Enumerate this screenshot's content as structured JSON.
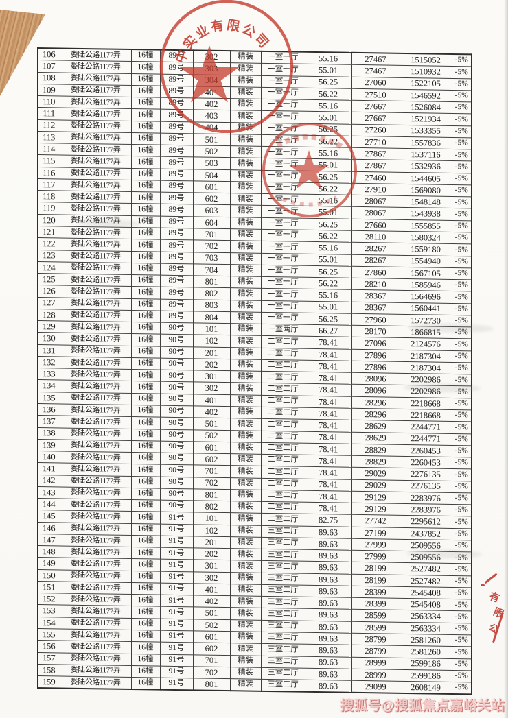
{
  "watermark": {
    "text": "搜狐号@搜狐焦点嘉峪关站"
  },
  "stamps": {
    "company_seal": {
      "arc_text": "中实业有限公司",
      "color": "#c43a2c"
    },
    "inner_seal": {
      "color": "#c43a2c"
    },
    "edge_fragment": {
      "chars": [
        "有",
        "限",
        "公"
      ],
      "color": "#bf392e"
    }
  },
  "table": {
    "columns": [
      "no",
      "address",
      "building",
      "unit",
      "room",
      "decoration",
      "layout",
      "area",
      "unit_price",
      "total_price",
      "discount"
    ],
    "rows": [
      [
        "106",
        "娄陆公路1177弄",
        "16幢",
        "89号",
        "302",
        "精装",
        "一室一厅",
        "55.16",
        "27467",
        "1515052",
        "-5%"
      ],
      [
        "107",
        "娄陆公路1177弄",
        "16幢",
        "89号",
        "303",
        "精装",
        "一室一厅",
        "55.01",
        "27467",
        "1510932",
        "-5%"
      ],
      [
        "108",
        "娄陆公路1177弄",
        "16幢",
        "89号",
        "304",
        "精装",
        "一室一厅",
        "56.25",
        "27060",
        "1522105",
        "-5%"
      ],
      [
        "109",
        "娄陆公路1177弄",
        "16幢",
        "89号",
        "401",
        "精装",
        "一室一厅",
        "56.22",
        "27510",
        "1546592",
        "-5%"
      ],
      [
        "110",
        "娄陆公路1177弄",
        "16幢",
        "89号",
        "402",
        "精装",
        "一室一厅",
        "55.16",
        "27667",
        "1526084",
        "-5%"
      ],
      [
        "111",
        "娄陆公路1177弄",
        "16幢",
        "89号",
        "403",
        "精装",
        "一室一厅",
        "55.01",
        "27667",
        "1521934",
        "-5%"
      ],
      [
        "112",
        "娄陆公路1177弄",
        "16幢",
        "89号",
        "404",
        "精装",
        "一室一厅",
        "56.25",
        "27260",
        "1533355",
        "-5%"
      ],
      [
        "113",
        "娄陆公路1177弄",
        "16幢",
        "89号",
        "501",
        "精装",
        "一室一厅",
        "56.22",
        "27710",
        "1557836",
        "-5%"
      ],
      [
        "114",
        "娄陆公路1177弄",
        "16幢",
        "89号",
        "502",
        "精装",
        "一室一厅",
        "55.16",
        "27867",
        "1537116",
        "-5%"
      ],
      [
        "115",
        "娄陆公路1177弄",
        "16幢",
        "89号",
        "503",
        "精装",
        "一室一厅",
        "55.01",
        "27867",
        "1532936",
        "-5%"
      ],
      [
        "116",
        "娄陆公路1177弄",
        "16幢",
        "89号",
        "504",
        "精装",
        "一室一厅",
        "56.25",
        "27460",
        "1544605",
        "-5%"
      ],
      [
        "117",
        "娄陆公路1177弄",
        "16幢",
        "89号",
        "601",
        "精装",
        "一室一厅",
        "56.22",
        "27910",
        "1569080",
        "-5%"
      ],
      [
        "118",
        "娄陆公路1177弄",
        "16幢",
        "89号",
        "602",
        "精装",
        "一室一厅",
        "55.16",
        "28067",
        "1548148",
        "-5%"
      ],
      [
        "119",
        "娄陆公路1177弄",
        "16幢",
        "89号",
        "603",
        "精装",
        "一室一厅",
        "55.01",
        "28067",
        "1543938",
        "-5%"
      ],
      [
        "120",
        "娄陆公路1177弄",
        "16幢",
        "89号",
        "604",
        "精装",
        "一室一厅",
        "56.25",
        "27660",
        "1555855",
        "-5%"
      ],
      [
        "121",
        "娄陆公路1177弄",
        "16幢",
        "89号",
        "701",
        "精装",
        "一室一厅",
        "56.22",
        "28110",
        "1580324",
        "-5%"
      ],
      [
        "122",
        "娄陆公路1177弄",
        "16幢",
        "89号",
        "702",
        "精装",
        "一室一厅",
        "55.16",
        "28267",
        "1559180",
        "-5%"
      ],
      [
        "123",
        "娄陆公路1177弄",
        "16幢",
        "89号",
        "703",
        "精装",
        "一室一厅",
        "55.01",
        "28267",
        "1554940",
        "-5%"
      ],
      [
        "124",
        "娄陆公路1177弄",
        "16幢",
        "89号",
        "704",
        "精装",
        "一室一厅",
        "56.25",
        "27860",
        "1567105",
        "-5%"
      ],
      [
        "125",
        "娄陆公路1177弄",
        "16幢",
        "89号",
        "801",
        "精装",
        "一室一厅",
        "56.22",
        "28210",
        "1585946",
        "-5%"
      ],
      [
        "126",
        "娄陆公路1177弄",
        "16幢",
        "89号",
        "802",
        "精装",
        "一室一厅",
        "55.16",
        "28367",
        "1564696",
        "-5%"
      ],
      [
        "127",
        "娄陆公路1177弄",
        "16幢",
        "89号",
        "803",
        "精装",
        "一室一厅",
        "55.01",
        "28367",
        "1560441",
        "-5%"
      ],
      [
        "128",
        "娄陆公路1177弄",
        "16幢",
        "89号",
        "804",
        "精装",
        "一室一厅",
        "56.25",
        "27960",
        "1572730",
        "-5%"
      ],
      [
        "129",
        "娄陆公路1177弄",
        "16幢",
        "90号",
        "101",
        "精装",
        "一室两厅",
        "66.27",
        "28170",
        "1866815",
        "-5%"
      ],
      [
        "130",
        "娄陆公路1177弄",
        "16幢",
        "90号",
        "102",
        "精装",
        "二室二厅",
        "78.41",
        "27096",
        "2124576",
        "-5%"
      ],
      [
        "131",
        "娄陆公路1177弄",
        "16幢",
        "90号",
        "201",
        "精装",
        "二室二厅",
        "78.41",
        "27896",
        "2187304",
        "-5%"
      ],
      [
        "132",
        "娄陆公路1177弄",
        "16幢",
        "90号",
        "202",
        "精装",
        "二室二厅",
        "78.41",
        "27896",
        "2187304",
        "-5%"
      ],
      [
        "133",
        "娄陆公路1177弄",
        "16幢",
        "90号",
        "301",
        "精装",
        "二室二厅",
        "78.41",
        "28096",
        "2202986",
        "-5%"
      ],
      [
        "134",
        "娄陆公路1177弄",
        "16幢",
        "90号",
        "302",
        "精装",
        "二室二厅",
        "78.41",
        "28096",
        "2202986",
        "-5%"
      ],
      [
        "135",
        "娄陆公路1177弄",
        "16幢",
        "90号",
        "401",
        "精装",
        "二室二厅",
        "78.41",
        "28296",
        "2218668",
        "-5%"
      ],
      [
        "136",
        "娄陆公路1177弄",
        "16幢",
        "90号",
        "402",
        "精装",
        "二室二厅",
        "78.41",
        "28296",
        "2218668",
        "-5%"
      ],
      [
        "137",
        "娄陆公路1177弄",
        "16幢",
        "90号",
        "501",
        "精装",
        "二室二厅",
        "78.41",
        "28629",
        "2244771",
        "-5%"
      ],
      [
        "138",
        "娄陆公路1177弄",
        "16幢",
        "90号",
        "502",
        "精装",
        "二室二厅",
        "78.41",
        "28629",
        "2244771",
        "-5%"
      ],
      [
        "139",
        "娄陆公路1177弄",
        "16幢",
        "90号",
        "601",
        "精装",
        "二室二厅",
        "78.41",
        "28829",
        "2260453",
        "-5%"
      ],
      [
        "140",
        "娄陆公路1177弄",
        "16幢",
        "90号",
        "602",
        "精装",
        "二室二厅",
        "78.41",
        "28829",
        "2260453",
        "-5%"
      ],
      [
        "141",
        "娄陆公路1177弄",
        "16幢",
        "90号",
        "701",
        "精装",
        "二室二厅",
        "78.41",
        "29029",
        "2276135",
        "-5%"
      ],
      [
        "142",
        "娄陆公路1177弄",
        "16幢",
        "90号",
        "702",
        "精装",
        "二室二厅",
        "78.41",
        "29029",
        "2276135",
        "-5%"
      ],
      [
        "143",
        "娄陆公路1177弄",
        "16幢",
        "90号",
        "801",
        "精装",
        "二室二厅",
        "78.41",
        "29129",
        "2283976",
        "-5%"
      ],
      [
        "144",
        "娄陆公路1177弄",
        "16幢",
        "90号",
        "802",
        "精装",
        "二室二厅",
        "78.41",
        "29129",
        "2283976",
        "-5%"
      ],
      [
        "145",
        "娄陆公路1177弄",
        "16幢",
        "91号",
        "101",
        "精装",
        "二室二厅",
        "82.75",
        "27742",
        "2295612",
        "-5%"
      ],
      [
        "146",
        "娄陆公路1177弄",
        "16幢",
        "91号",
        "102",
        "精装",
        "三室二厅",
        "89.63",
        "27199",
        "2437852",
        "-5%"
      ],
      [
        "147",
        "娄陆公路1177弄",
        "16幢",
        "91号",
        "201",
        "精装",
        "三室二厅",
        "89.63",
        "27999",
        "2509556",
        "-5%"
      ],
      [
        "148",
        "娄陆公路1177弄",
        "16幢",
        "91号",
        "202",
        "精装",
        "三室二厅",
        "89.63",
        "27999",
        "2509556",
        "-5%"
      ],
      [
        "149",
        "娄陆公路1177弄",
        "16幢",
        "91号",
        "301",
        "精装",
        "三室二厅",
        "89.63",
        "28199",
        "2527482",
        "-5%"
      ],
      [
        "150",
        "娄陆公路1177弄",
        "16幢",
        "91号",
        "302",
        "精装",
        "三室二厅",
        "89.63",
        "28199",
        "2527482",
        "-5%"
      ],
      [
        "151",
        "娄陆公路1177弄",
        "16幢",
        "91号",
        "401",
        "精装",
        "三室二厅",
        "89.63",
        "28399",
        "2545408",
        "-5%"
      ],
      [
        "152",
        "娄陆公路1177弄",
        "16幢",
        "91号",
        "402",
        "精装",
        "三室二厅",
        "89.63",
        "28399",
        "2545408",
        "-5%"
      ],
      [
        "153",
        "娄陆公路1177弄",
        "16幢",
        "91号",
        "501",
        "精装",
        "三室二厅",
        "89.63",
        "28599",
        "2563334",
        "-5%"
      ],
      [
        "154",
        "娄陆公路1177弄",
        "16幢",
        "91号",
        "502",
        "精装",
        "三室二厅",
        "89.63",
        "28599",
        "2563334",
        "-5%"
      ],
      [
        "155",
        "娄陆公路1177弄",
        "16幢",
        "91号",
        "601",
        "精装",
        "三室二厅",
        "89.63",
        "28799",
        "2581260",
        "-5%"
      ],
      [
        "156",
        "娄陆公路1177弄",
        "16幢",
        "91号",
        "602",
        "精装",
        "三室二厅",
        "89.63",
        "28799",
        "2581260",
        "-5%"
      ],
      [
        "157",
        "娄陆公路1177弄",
        "16幢",
        "91号",
        "701",
        "精装",
        "三室二厅",
        "89.63",
        "28999",
        "2599186",
        "-5%"
      ],
      [
        "158",
        "娄陆公路1177弄",
        "16幢",
        "91号",
        "702",
        "精装",
        "三室二厅",
        "89.63",
        "28999",
        "2599186",
        "-5%"
      ],
      [
        "159",
        "娄陆公路1177弄",
        "16幢",
        "91号",
        "801",
        "精装",
        "三室二厅",
        "89.63",
        "29099",
        "2608149",
        "-5%"
      ]
    ]
  }
}
